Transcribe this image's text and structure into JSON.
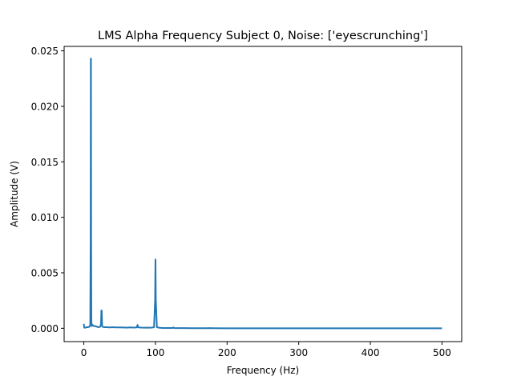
{
  "chart_data": {
    "type": "line",
    "title": "LMS Alpha Frequency Subject 0, Noise: ['eyescrunching']",
    "xlabel": "Frequency (Hz)",
    "ylabel": "Amplitude (V)",
    "xlim": [
      -27.5,
      527.5
    ],
    "ylim": [
      -0.0012,
      0.0254
    ],
    "x_ticks": [
      0,
      100,
      200,
      300,
      400,
      500
    ],
    "x_tick_labels": [
      "0",
      "100",
      "200",
      "300",
      "400",
      "500"
    ],
    "y_ticks": [
      0.0,
      0.005,
      0.01,
      0.015,
      0.02,
      0.025
    ],
    "y_tick_labels": [
      "0.000",
      "0.005",
      "0.010",
      "0.015",
      "0.020",
      "0.025"
    ],
    "grid": false,
    "legend": "none",
    "series": [
      {
        "color": "#1f77b4",
        "x": [
          0,
          0.5,
          1,
          2,
          4,
          6,
          8,
          9,
          9.5,
          9.8,
          10,
          10.2,
          10.5,
          11,
          12,
          14,
          16,
          18,
          20,
          22,
          23,
          24,
          24.5,
          25,
          25.5,
          26,
          28,
          32,
          36,
          40,
          45,
          50,
          55,
          60,
          65,
          70,
          74,
          75,
          76,
          80,
          85,
          90,
          95,
          98,
          99.5,
          100,
          100.5,
          102,
          105,
          110,
          115,
          120,
          124,
          125,
          126,
          130,
          140,
          150,
          160,
          170,
          175,
          180,
          200,
          250,
          300,
          350,
          400,
          450,
          500
        ],
        "y": [
          0.0004,
          0.0001,
          5e-05,
          5e-05,
          0.0001,
          0.0001,
          0.00015,
          0.0003,
          0.008,
          0.0243,
          0.0243,
          0.008,
          0.0008,
          0.0002,
          0.0003,
          0.0002,
          0.0002,
          0.00015,
          0.0001,
          0.00012,
          0.00015,
          0.0004,
          0.0016,
          0.0016,
          0.0003,
          0.00015,
          0.0001,
          0.0001,
          8e-05,
          0.0001,
          8e-05,
          8e-05,
          7e-05,
          6e-05,
          8e-05,
          6e-05,
          8e-05,
          0.0003,
          8e-05,
          6e-05,
          5e-05,
          5e-05,
          6e-05,
          0.0001,
          0.0025,
          0.0062,
          0.0025,
          0.0001,
          5e-05,
          3e-05,
          3e-05,
          3e-05,
          3e-05,
          8e-05,
          2e-05,
          2e-05,
          2e-05,
          1e-05,
          1e-05,
          1e-05,
          2e-05,
          1e-05,
          0.0,
          0.0,
          0.0,
          0.0,
          0.0,
          0.0,
          0.0
        ]
      }
    ]
  }
}
